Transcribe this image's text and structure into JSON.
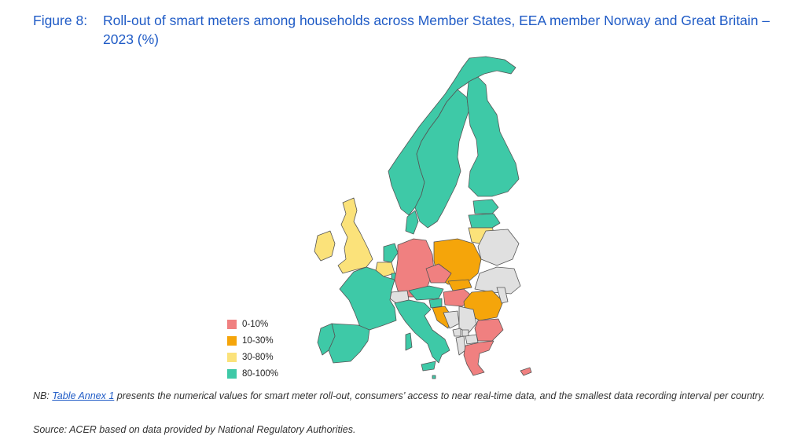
{
  "figure": {
    "label": "Figure 8:",
    "title": "Roll-out of smart meters among households across Member States, EEA member Norway and Great Britain – 2023 (%)"
  },
  "legend": [
    {
      "label": "0-10%",
      "color": "#f08080"
    },
    {
      "label": "10-30%",
      "color": "#f5a50a"
    },
    {
      "label": "30-80%",
      "color": "#fbe27a"
    },
    {
      "label": "80-100%",
      "color": "#3ec9a7"
    }
  ],
  "no_data_color": "#e0e0e0",
  "countries": [
    {
      "name": "Norway",
      "category": "80-100%"
    },
    {
      "name": "Sweden",
      "category": "80-100%"
    },
    {
      "name": "Finland",
      "category": "80-100%"
    },
    {
      "name": "Estonia",
      "category": "80-100%"
    },
    {
      "name": "Latvia",
      "category": "80-100%"
    },
    {
      "name": "Lithuania",
      "category": "30-80%"
    },
    {
      "name": "Denmark",
      "category": "80-100%"
    },
    {
      "name": "Great Britain",
      "category": "30-80%"
    },
    {
      "name": "Ireland",
      "category": "30-80%"
    },
    {
      "name": "Netherlands",
      "category": "80-100%"
    },
    {
      "name": "Belgium",
      "category": "30-80%"
    },
    {
      "name": "Luxembourg",
      "category": "80-100%"
    },
    {
      "name": "Germany",
      "category": "0-10%"
    },
    {
      "name": "Poland",
      "category": "10-30%"
    },
    {
      "name": "Czechia",
      "category": "0-10%"
    },
    {
      "name": "Slovakia",
      "category": "10-30%"
    },
    {
      "name": "Austria",
      "category": "80-100%"
    },
    {
      "name": "Hungary",
      "category": "0-10%"
    },
    {
      "name": "Slovenia",
      "category": "80-100%"
    },
    {
      "name": "Croatia",
      "category": "10-30%"
    },
    {
      "name": "Romania",
      "category": "10-30%"
    },
    {
      "name": "Bulgaria",
      "category": "0-10%"
    },
    {
      "name": "Greece",
      "category": "0-10%"
    },
    {
      "name": "Cyprus",
      "category": "0-10%"
    },
    {
      "name": "France",
      "category": "80-100%"
    },
    {
      "name": "Spain",
      "category": "80-100%"
    },
    {
      "name": "Portugal",
      "category": "80-100%"
    },
    {
      "name": "Italy",
      "category": "80-100%"
    },
    {
      "name": "Malta",
      "category": "80-100%"
    },
    {
      "name": "Switzerland",
      "category": "no-data"
    },
    {
      "name": "Belarus",
      "category": "no-data"
    },
    {
      "name": "Ukraine",
      "category": "no-data"
    },
    {
      "name": "Moldova",
      "category": "no-data"
    },
    {
      "name": "Serbia",
      "category": "no-data"
    },
    {
      "name": "Bosnia and Herzegovina",
      "category": "no-data"
    },
    {
      "name": "Montenegro",
      "category": "no-data"
    },
    {
      "name": "Albania",
      "category": "no-data"
    },
    {
      "name": "North Macedonia",
      "category": "no-data"
    },
    {
      "name": "Kosovo",
      "category": "no-data"
    }
  ],
  "note": {
    "prefix": "NB: ",
    "link": "Table Annex 1",
    "text": " presents the numerical values for smart meter roll-out, consumers’ access to near real-time data, and the smallest data recording interval per country."
  },
  "source": "Source: ACER based on data provided by National Regulatory Authorities."
}
